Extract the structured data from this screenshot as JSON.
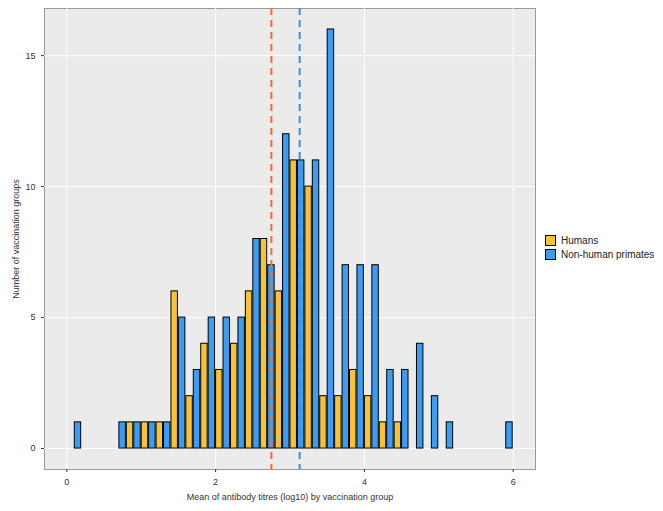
{
  "chart_data": {
    "type": "histogram",
    "x_label": "Mean of antibody titres (log10) by vaccination group",
    "y_label": "Number of vaccination groups",
    "bins": [
      0,
      0.2,
      0.4,
      0.6,
      0.8,
      1,
      1.2,
      1.4,
      1.6,
      1.8,
      2,
      2.2,
      2.4,
      2.6,
      2.8,
      3,
      3.2,
      3.4,
      3.6,
      3.8,
      4,
      4.2,
      4.4,
      4.6,
      4.8,
      5,
      5.2,
      5.4,
      5.6,
      5.8,
      6
    ],
    "series": [
      {
        "name": "Humans",
        "color": "#f7c236",
        "mean": 2.75,
        "values": [
          0,
          0,
          0,
          0,
          1,
          1,
          1,
          6,
          2,
          4,
          3,
          4,
          6,
          8,
          6,
          11,
          10,
          2,
          2,
          3,
          2,
          1,
          1,
          0,
          0,
          0,
          0,
          0,
          0,
          0
        ]
      },
      {
        "name": "Non-human primates",
        "color": "#3a9cf2",
        "mean": 3.13,
        "values": [
          1,
          0,
          0,
          1,
          1,
          1,
          1,
          5,
          3,
          5,
          5,
          5,
          8,
          7,
          12,
          11,
          11,
          16,
          7,
          7,
          7,
          3,
          3,
          4,
          2,
          1,
          0,
          0,
          0,
          1
        ]
      }
    ],
    "xlim": [
      -0.3,
      6.3
    ],
    "xticks": [
      0,
      2,
      4,
      6
    ],
    "ylim": [
      -0.8,
      16.8
    ],
    "yticks": [
      0,
      5,
      10,
      15
    ],
    "grid": true,
    "legend": "right"
  }
}
